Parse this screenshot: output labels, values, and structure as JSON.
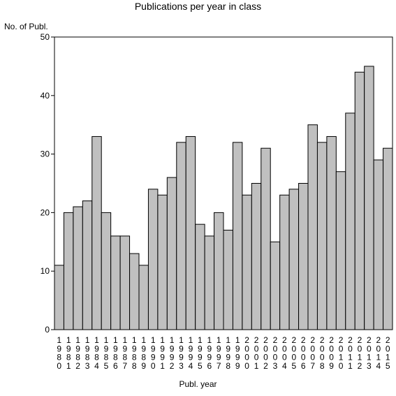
{
  "chart_data": {
    "type": "bar",
    "title": "Publications per year in class",
    "ylabel": "No. of Publ.",
    "xlabel": "Publ. year",
    "ylim": [
      0,
      50
    ],
    "yticks": [
      0,
      10,
      20,
      30,
      40,
      50
    ],
    "grid": false,
    "bar_color": "#c0c0c0",
    "categories": [
      "1980",
      "1981",
      "1982",
      "1983",
      "1984",
      "1985",
      "1986",
      "1987",
      "1988",
      "1989",
      "1990",
      "1991",
      "1992",
      "1993",
      "1994",
      "1995",
      "1996",
      "1997",
      "1998",
      "1999",
      "2000",
      "2001",
      "2002",
      "2003",
      "2004",
      "2005",
      "2006",
      "2007",
      "2008",
      "2009",
      "2010",
      "2011",
      "2012",
      "2013",
      "2014",
      "2015"
    ],
    "values": [
      11,
      20,
      21,
      22,
      33,
      20,
      16,
      16,
      13,
      11,
      24,
      23,
      26,
      32,
      33,
      18,
      16,
      20,
      17,
      32,
      23,
      25,
      31,
      15,
      23,
      24,
      25,
      35,
      32,
      33,
      27,
      37,
      44,
      45,
      29,
      31
    ]
  }
}
